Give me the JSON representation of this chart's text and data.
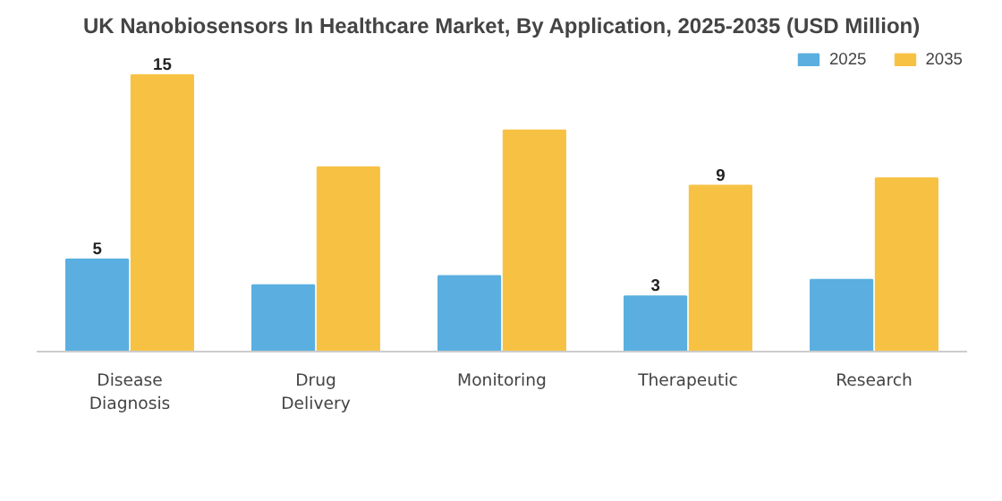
{
  "chart_data": {
    "type": "bar",
    "title": "UK Nanobiosensors In Healthcare Market, By Application, 2025-2035 (USD Million)",
    "categories": [
      "Disease Diagnosis",
      "Drug Delivery",
      "Monitoring",
      "Therapeutic",
      "Research"
    ],
    "series": [
      {
        "name": "2025",
        "color": "#5aafe0",
        "values": [
          5,
          3.6,
          4.1,
          3,
          3.9
        ],
        "value_labels": [
          "5",
          null,
          null,
          "3",
          null
        ]
      },
      {
        "name": "2035",
        "color": "#f7c244",
        "values": [
          15,
          10,
          12,
          9,
          9.4
        ],
        "value_labels": [
          "15",
          null,
          null,
          "9",
          null
        ]
      }
    ],
    "legend": "top right",
    "grid": false
  }
}
